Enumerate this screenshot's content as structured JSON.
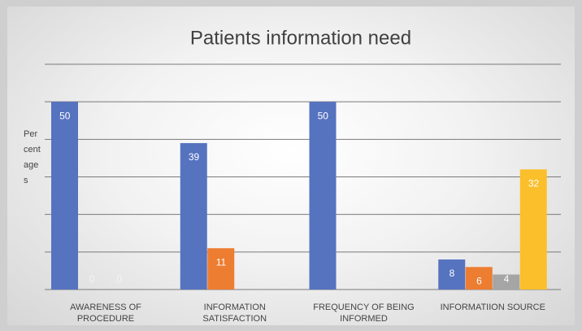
{
  "chart_data": {
    "type": "bar",
    "title": "Patients information need",
    "y_label": "Percentages",
    "categories": [
      "AWARENESS OF PROCEDURE",
      "INFORMATION SATISFACTION",
      "FREQUENCY OF BEING INFORMED",
      "INFORMATIION SOURCE"
    ],
    "series": [
      {
        "color": "#5673c0",
        "values": [
          50,
          39,
          50,
          8
        ]
      },
      {
        "color": "#ed7d31",
        "values": [
          0,
          11,
          null,
          6
        ]
      },
      {
        "color": "#a5a5a5",
        "values": [
          0,
          null,
          null,
          4
        ]
      },
      {
        "color": "#fbbf2b",
        "values": [
          null,
          null,
          null,
          32
        ]
      }
    ],
    "ylim": [
      0,
      60
    ],
    "yticks": [
      0,
      10,
      20,
      30,
      40,
      50,
      60
    ],
    "grid": true
  }
}
